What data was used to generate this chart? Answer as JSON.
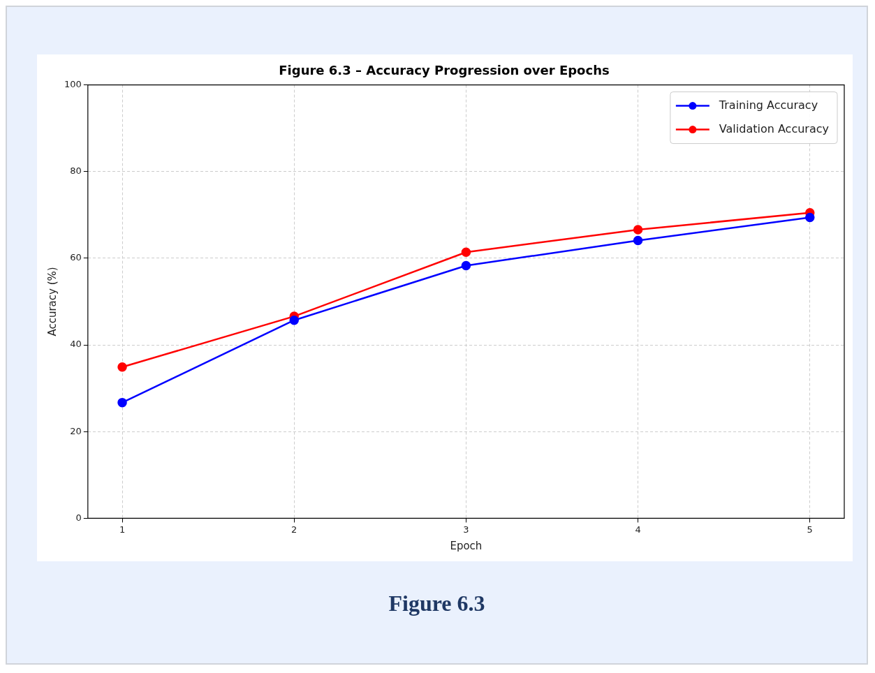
{
  "chart_data": {
    "type": "line",
    "title": "Figure 6.3 – Accuracy Progression over Epochs",
    "xlabel": "Epoch",
    "ylabel": "Accuracy (%)",
    "x": [
      1,
      2,
      3,
      4,
      5
    ],
    "series": [
      {
        "name": "Training Accuracy",
        "color": "#0000ff",
        "values": [
          26.7,
          45.7,
          58.3,
          64.1,
          69.4
        ]
      },
      {
        "name": "Validation Accuracy",
        "color": "#ff0000",
        "values": [
          34.9,
          46.6,
          61.4,
          66.6,
          70.5
        ]
      }
    ],
    "xlim": [
      0.8,
      5.2
    ],
    "xticks": [
      1,
      2,
      3,
      4,
      5
    ],
    "ylim": [
      0,
      100
    ],
    "yticks": [
      0,
      20,
      40,
      60,
      80,
      100
    ],
    "grid": true,
    "legend": "top right",
    "marker": "circle",
    "line_style": "solid",
    "annotations": [
      "Figure 6.3"
    ]
  }
}
